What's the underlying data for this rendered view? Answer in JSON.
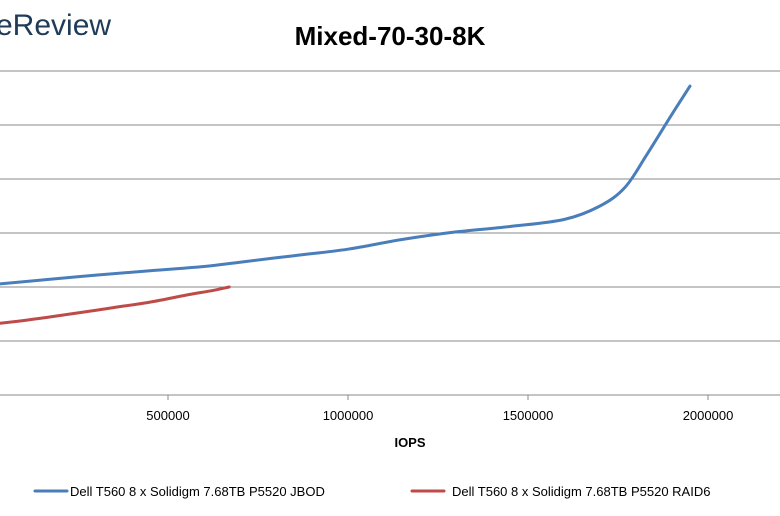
{
  "logo": {
    "text": "eReview"
  },
  "chart_data": {
    "type": "line",
    "title": "Mixed-70-30-8K",
    "xlabel": "IOPS",
    "ylabel": "",
    "xlim": [
      0,
      2200000
    ],
    "ylim": [
      0,
      7
    ],
    "grid": true,
    "legend_position": "bottom",
    "x_ticks": [
      500000,
      1000000,
      1500000,
      2000000
    ],
    "x_tick_labels": [
      "500000",
      "1000000",
      "1500000",
      "2000000"
    ],
    "y_gridlines": [
      1,
      2,
      3,
      4,
      5,
      6
    ],
    "series": [
      {
        "name": "Dell T560 8 x Solidigm 7.68TB P5520 JBOD",
        "color": "#4a7ebb",
        "points": [
          [
            20000,
            2.05
          ],
          [
            150000,
            2.13
          ],
          [
            300000,
            2.22
          ],
          [
            450000,
            2.3
          ],
          [
            600000,
            2.38
          ],
          [
            700000,
            2.46
          ],
          [
            850000,
            2.58
          ],
          [
            1000000,
            2.7
          ],
          [
            1150000,
            2.88
          ],
          [
            1300000,
            3.02
          ],
          [
            1450000,
            3.12
          ],
          [
            1600000,
            3.25
          ],
          [
            1700000,
            3.5
          ],
          [
            1770000,
            3.85
          ],
          [
            1830000,
            4.45
          ],
          [
            1900000,
            5.2
          ],
          [
            1950000,
            5.72
          ]
        ]
      },
      {
        "name": "Dell T560 8 x Solidigm 7.68TB P5520 RAID6",
        "color": "#be4b48",
        "points": [
          [
            -10000,
            1.3
          ],
          [
            100000,
            1.38
          ],
          [
            250000,
            1.52
          ],
          [
            350000,
            1.62
          ],
          [
            450000,
            1.72
          ],
          [
            550000,
            1.85
          ],
          [
            620000,
            1.93
          ],
          [
            670000,
            2.0
          ]
        ]
      }
    ]
  }
}
